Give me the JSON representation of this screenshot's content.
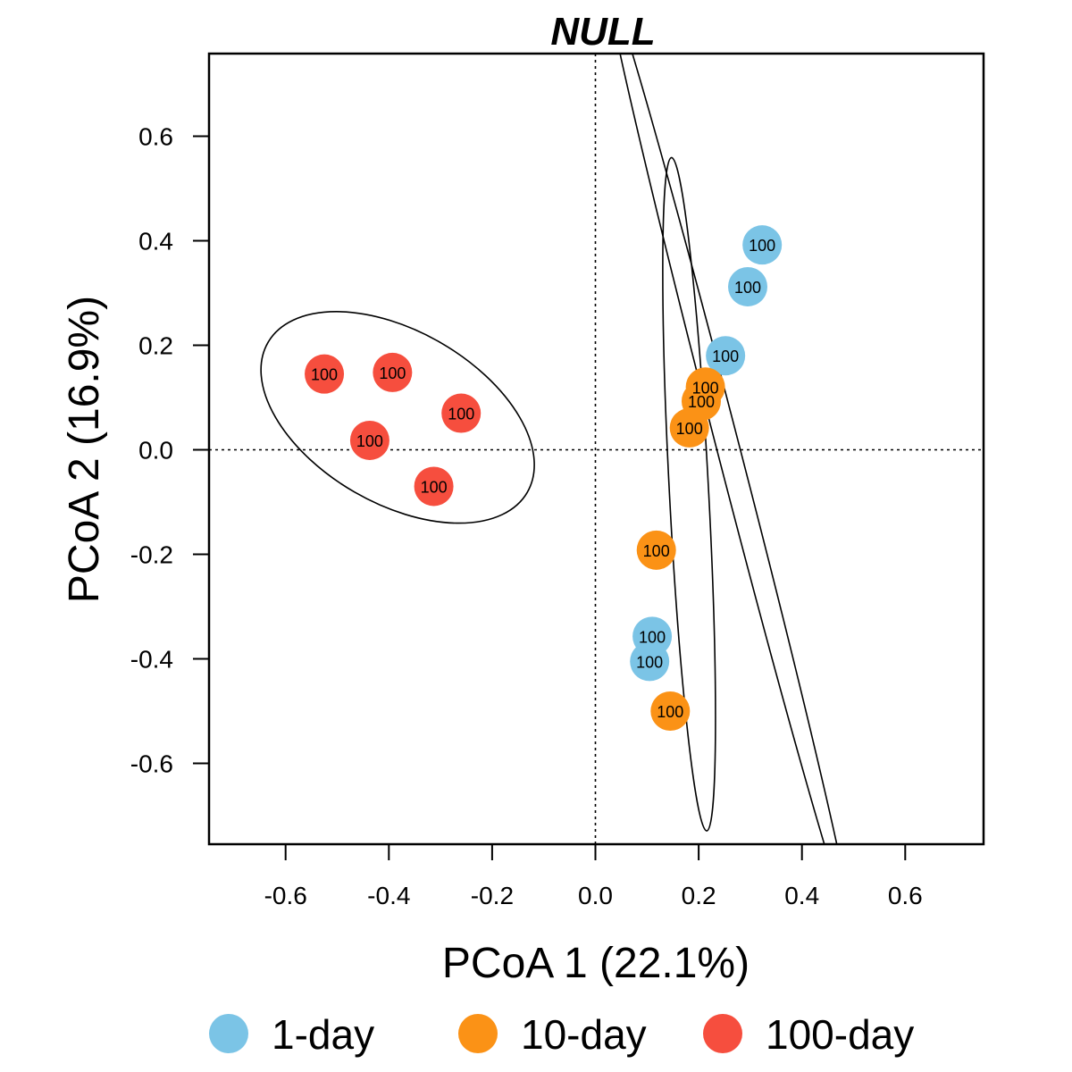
{
  "chart_data": {
    "type": "scatter",
    "title": "NULL",
    "xlabel": "PCoA 1 (22.1%)",
    "ylabel": "PCoA 2 (16.9%)",
    "xlim": [
      -0.75,
      0.75
    ],
    "ylim": [
      -0.75,
      0.75
    ],
    "xticks": [
      -0.6,
      -0.4,
      -0.2,
      0.0,
      0.2,
      0.4,
      0.6
    ],
    "yticks": [
      -0.6,
      -0.4,
      -0.2,
      0.0,
      0.2,
      0.4,
      0.6
    ],
    "xtick_labels": [
      "-0.6",
      "-0.4",
      "-0.2",
      "0.0",
      "0.2",
      "0.4",
      "0.6"
    ],
    "ytick_labels": [
      "-0.6",
      "-0.4",
      "-0.2",
      "0.0",
      "0.2",
      "0.4",
      "0.6"
    ],
    "grid": false,
    "reference_lines": {
      "x": 0,
      "y": 0
    },
    "legend_position": "bottom",
    "series": [
      {
        "name": "1-day",
        "color": "#7BC4E6",
        "points": [
          {
            "x": 0.323,
            "y": 0.392,
            "label": "100"
          },
          {
            "x": 0.295,
            "y": 0.312,
            "label": "100"
          },
          {
            "x": 0.252,
            "y": 0.18,
            "label": "100"
          },
          {
            "x": 0.11,
            "y": -0.357,
            "label": "100"
          },
          {
            "x": 0.105,
            "y": -0.405,
            "label": "100"
          }
        ],
        "ellipse": {
          "cx": 0.258,
          "cy": 0.0,
          "rx": 0.022,
          "ry": 0.92,
          "angle": -14.5
        }
      },
      {
        "name": "10-day",
        "color": "#FB9216",
        "points": [
          {
            "x": 0.213,
            "y": 0.12,
            "label": "100"
          },
          {
            "x": 0.205,
            "y": 0.093,
            "label": "100"
          },
          {
            "x": 0.182,
            "y": 0.042,
            "label": "100"
          },
          {
            "x": 0.118,
            "y": -0.192,
            "label": "100"
          },
          {
            "x": 0.145,
            "y": -0.5,
            "label": "100"
          }
        ],
        "ellipse": {
          "cx": 0.1815,
          "cy": -0.085,
          "rx": 0.038,
          "ry": 0.645,
          "angle": -3.0
        }
      },
      {
        "name": "100-day",
        "color": "#F64E3E",
        "points": [
          {
            "x": -0.525,
            "y": 0.145,
            "label": "100"
          },
          {
            "x": -0.393,
            "y": 0.148,
            "label": "100"
          },
          {
            "x": -0.26,
            "y": 0.07,
            "label": "100"
          },
          {
            "x": -0.437,
            "y": 0.018,
            "label": "100"
          },
          {
            "x": -0.313,
            "y": -0.07,
            "label": "100"
          }
        ],
        "ellipse": {
          "cx": -0.383,
          "cy": 0.062,
          "rx": 0.29,
          "ry": 0.165,
          "angle": 30.0
        }
      }
    ]
  }
}
